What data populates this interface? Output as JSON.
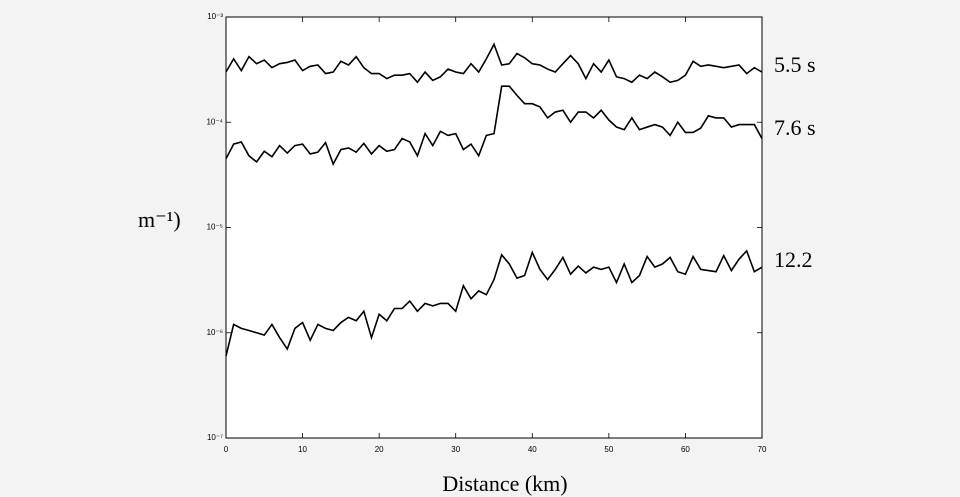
{
  "chart_data": {
    "type": "line",
    "x_label": "Distance (km)",
    "y_label": "m⁻¹)",
    "log_scale": true,
    "xlim": [
      0,
      70
    ],
    "xticks": [
      0,
      10,
      20,
      30,
      40,
      50,
      60,
      70
    ],
    "ylim": [
      1e-07,
      0.001
    ],
    "yticks": [
      {
        "value": 1e-07,
        "label": "10⁻⁷"
      },
      {
        "value": 1e-06,
        "label": "10⁻⁶"
      },
      {
        "value": 1e-05,
        "label": "10⁻⁵"
      },
      {
        "value": 0.0001,
        "label": "10⁻⁴"
      },
      {
        "value": 0.001,
        "label": "10⁻³"
      }
    ],
    "x": [
      0,
      1,
      2,
      3,
      4,
      5,
      6,
      7,
      8,
      9,
      10,
      11,
      12,
      13,
      14,
      15,
      16,
      17,
      18,
      19,
      20,
      21,
      22,
      23,
      24,
      25,
      26,
      27,
      28,
      29,
      30,
      31,
      32,
      33,
      34,
      35,
      36,
      37,
      38,
      39,
      40,
      41,
      42,
      43,
      44,
      45,
      46,
      47,
      48,
      49,
      50,
      51,
      52,
      53,
      54,
      55,
      56,
      57,
      58,
      59,
      60,
      61,
      62,
      63,
      64,
      65,
      66,
      67,
      68,
      69,
      70
    ],
    "series": [
      {
        "name": "5.5 s",
        "color": "#000000",
        "values": [
          0.0003,
          0.0004,
          0.00031,
          0.00042,
          0.00036,
          0.00039,
          0.00033,
          0.00036,
          0.00037,
          0.00039,
          0.00031,
          0.00034,
          0.00035,
          0.00029,
          0.0003,
          0.00038,
          0.00035,
          0.00042,
          0.00033,
          0.00029,
          0.00029,
          0.00026,
          0.00028,
          0.00028,
          0.00029,
          0.00024,
          0.0003,
          0.00025,
          0.00027,
          0.00032,
          0.0003,
          0.00029,
          0.00036,
          0.0003,
          0.0004,
          0.00055,
          0.00035,
          0.00036,
          0.00045,
          0.00041,
          0.00036,
          0.00035,
          0.00032,
          0.0003,
          0.00036,
          0.00043,
          0.00036,
          0.00026,
          0.00036,
          0.0003,
          0.00039,
          0.00027,
          0.00026,
          0.00024,
          0.00028,
          0.00026,
          0.0003,
          0.00027,
          0.00024,
          0.00025,
          0.00028,
          0.00038,
          0.00034,
          0.00035,
          0.00034,
          0.00033,
          0.00034,
          0.00035,
          0.00029,
          0.00033,
          0.0003
        ]
      },
      {
        "name": "7.6 s",
        "color": "#000000",
        "values": [
          4.5e-05,
          6.2e-05,
          6.5e-05,
          4.8e-05,
          4.2e-05,
          5.3e-05,
          4.7e-05,
          6e-05,
          5.1e-05,
          6e-05,
          6.2e-05,
          5e-05,
          5.2e-05,
          6.4e-05,
          4e-05,
          5.5e-05,
          5.7e-05,
          5.2e-05,
          6.3e-05,
          5e-05,
          6e-05,
          5.3e-05,
          5.5e-05,
          7e-05,
          6.5e-05,
          4.8e-05,
          7.8e-05,
          6e-05,
          8.2e-05,
          7.5e-05,
          7.8e-05,
          5.5e-05,
          6.2e-05,
          4.8e-05,
          7.5e-05,
          7.8e-05,
          0.00022,
          0.00022,
          0.00018,
          0.00015,
          0.00015,
          0.00014,
          0.00011,
          0.000125,
          0.00013,
          0.0001,
          0.000125,
          0.000125,
          0.00011,
          0.00013,
          0.000105,
          9e-05,
          8.5e-05,
          0.00011,
          8.5e-05,
          9e-05,
          9.5e-05,
          9e-05,
          7.5e-05,
          0.0001,
          8e-05,
          8e-05,
          8.8e-05,
          0.000115,
          0.00011,
          0.00011,
          9e-05,
          9.5e-05,
          9.5e-05,
          9.5e-05,
          7e-05
        ]
      },
      {
        "name": "12.2",
        "color": "#000000",
        "values": [
          6e-07,
          1.2e-06,
          1.1e-06,
          1.05e-06,
          1e-06,
          9.5e-07,
          1.2e-06,
          9e-07,
          7e-07,
          1.1e-06,
          1.25e-06,
          8.5e-07,
          1.2e-06,
          1.1e-06,
          1.05e-06,
          1.25e-06,
          1.4e-06,
          1.3e-06,
          1.6e-06,
          9e-07,
          1.5e-06,
          1.3e-06,
          1.7e-06,
          1.7e-06,
          2e-06,
          1.6e-06,
          1.9e-06,
          1.8e-06,
          1.9e-06,
          1.9e-06,
          1.6e-06,
          2.8e-06,
          2.1e-06,
          2.5e-06,
          2.3e-06,
          3.2e-06,
          5.5e-06,
          4.5e-06,
          3.3e-06,
          3.5e-06,
          5.8e-06,
          4e-06,
          3.2e-06,
          4e-06,
          5.2e-06,
          3.6e-06,
          4.3e-06,
          3.7e-06,
          4.2e-06,
          4e-06,
          4.2e-06,
          3e-06,
          4.5e-06,
          3e-06,
          3.5e-06,
          5.3e-06,
          4.2e-06,
          4.5e-06,
          5.2e-06,
          3.8e-06,
          3.6e-06,
          5.3e-06,
          4e-06,
          3.9e-06,
          3.8e-06,
          5.4e-06,
          3.9e-06,
          5e-06,
          6e-06,
          3.8e-06,
          4.2e-06
        ]
      }
    ]
  }
}
